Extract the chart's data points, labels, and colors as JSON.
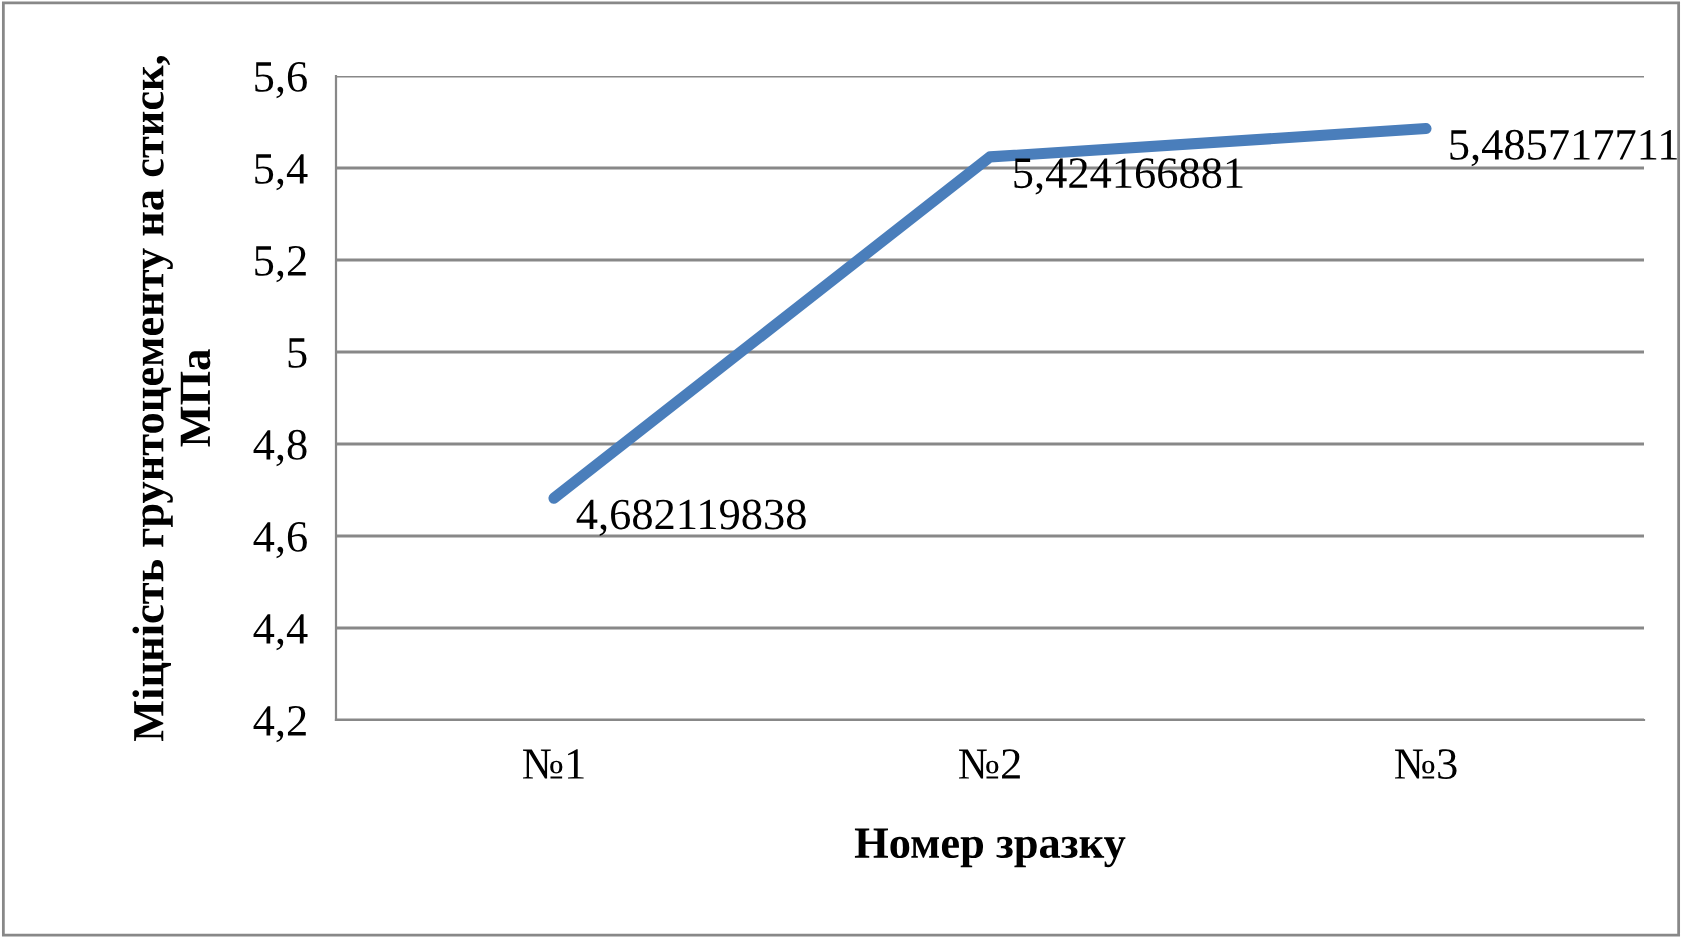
{
  "chart_data": {
    "type": "line",
    "xlabel": "Номер зразку",
    "ylabel": "Міцність грунтоцементу на стиск, МПа",
    "categories": [
      "№1",
      "№2",
      "№3"
    ],
    "series": [
      {
        "color": "#4a7ebb",
        "values": [
          4.682119838,
          5.424166881,
          5.485717711
        ],
        "value_labels": [
          "4,682119838",
          "5,424166881",
          "5,485717711"
        ]
      }
    ],
    "ylim": [
      4.2,
      5.6
    ],
    "yticks": [
      {
        "value": 4.2,
        "label": "4,2"
      },
      {
        "value": 4.4,
        "label": "4,4"
      },
      {
        "value": 4.6,
        "label": "4,6"
      },
      {
        "value": 4.8,
        "label": "4,8"
      },
      5,
      {
        "value": 5.2,
        "label": "5,2"
      },
      {
        "value": 5.4,
        "label": "5,4"
      },
      {
        "value": 5.6,
        "label": "5,6"
      }
    ],
    "grid": "y",
    "marker": "none",
    "line_style": "solid",
    "legend": false
  }
}
